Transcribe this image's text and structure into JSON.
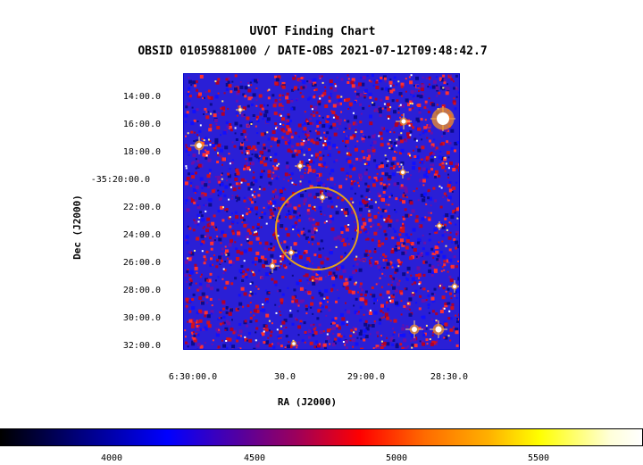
{
  "title": "UVOT Finding Chart",
  "subtitle": "OBSID 01059881000 / DATE-OBS 2021-07-12T09:48:42.7",
  "axes": {
    "ylabel": "Dec (J2000)",
    "xlabel": "RA (J2000)",
    "yticks": [
      "14:00.0",
      "16:00.0",
      "18:00.0",
      "-35:20:00.0",
      "22:00.0",
      "24:00.0",
      "26:00.0",
      "28:00.0",
      "30:00.0",
      "32:00.0"
    ],
    "xticks": [
      "6:30:00.0",
      "30.0",
      "29:00.0",
      "28:30.0"
    ]
  },
  "colorbar": {
    "labels": [
      "4000",
      "4500",
      "5000",
      "5500"
    ]
  },
  "colors": {
    "frame": "#0000cc",
    "circle": "#e6a21a",
    "noise_blue": "#2a1fd6",
    "noise_red": "#d01020"
  }
}
